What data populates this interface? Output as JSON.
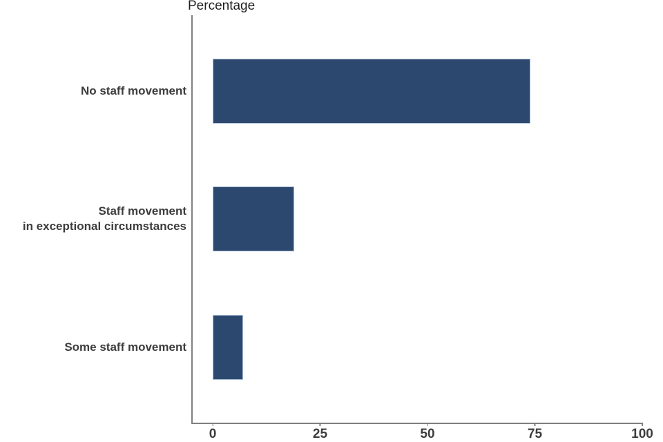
{
  "chart_data": {
    "type": "bar",
    "orientation": "horizontal",
    "title": "Percentage",
    "categories": [
      "No staff movement",
      "Staff movement\nin exceptional circumstances",
      "Some staff movement"
    ],
    "values": [
      74,
      19,
      7
    ],
    "xlim": [
      0,
      100
    ],
    "xticks": [
      "0",
      "25",
      "50",
      "75",
      "100"
    ],
    "xtick_values": [
      0,
      25,
      50,
      75,
      100
    ],
    "grid": false,
    "legend": false,
    "bar_color": "#2c486e",
    "bar_edge_color": "#a9bed6",
    "axis_color": "#7f7f7f",
    "tick_label_color": "#3d3d3d",
    "category_label_color": "#3d3d3d",
    "title_color": "#1f1f1f"
  }
}
